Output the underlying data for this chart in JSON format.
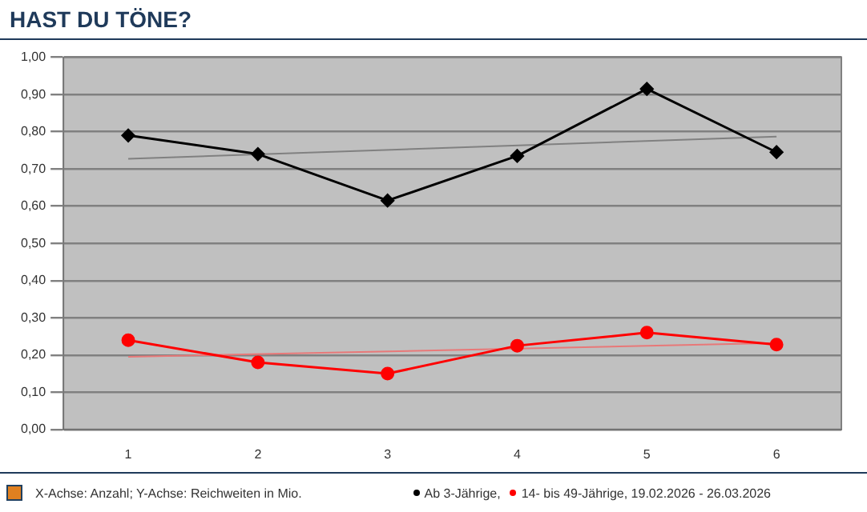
{
  "chart_data": {
    "type": "line",
    "title": "HAST DU TÖNE?",
    "categories": [
      "1",
      "2",
      "3",
      "4",
      "5",
      "6"
    ],
    "series": [
      {
        "name": "Ab 3-Jährige,",
        "color": "#000000",
        "marker": "diamond",
        "values": [
          0.79,
          0.74,
          0.615,
          0.735,
          0.915,
          0.745
        ]
      },
      {
        "name": "14- bis 49-Jährige, 19.02.2026 - 26.03.2026",
        "color": "#ff0000",
        "marker": "circle",
        "values": [
          0.24,
          0.18,
          0.15,
          0.225,
          0.26,
          0.228
        ]
      },
      {
        "type": "line",
        "color": "#808080",
        "marker": "none",
        "x": [
          "1",
          "6"
        ],
        "values": [
          0.727,
          0.787
        ]
      },
      {
        "type": "line",
        "color": "#e87878",
        "marker": "none",
        "x": [
          "1",
          "6"
        ],
        "values": [
          0.195,
          0.232
        ]
      }
    ],
    "ylim": [
      0,
      1
    ],
    "yticks": [
      {
        "value": 0,
        "label": "0,00"
      },
      {
        "value": 0.1,
        "label": "0,10"
      },
      {
        "value": 0.2,
        "label": "0,20"
      },
      {
        "value": 0.3,
        "label": "0,30"
      },
      {
        "value": 0.4,
        "label": "0,40"
      },
      {
        "value": 0.5,
        "label": "0,50"
      },
      {
        "value": 0.6,
        "label": "0,60"
      },
      {
        "value": 0.7,
        "label": "0,70"
      },
      {
        "value": 0.8,
        "label": "0,80"
      },
      {
        "value": 0.9,
        "label": "0,90"
      },
      {
        "value": 1,
        "label": "1,00"
      }
    ],
    "grid": "y",
    "legend": "bottom",
    "annotations": [
      "X-Achse: Anzahl; Y-Achse: Reichweiten in Mio."
    ]
  }
}
